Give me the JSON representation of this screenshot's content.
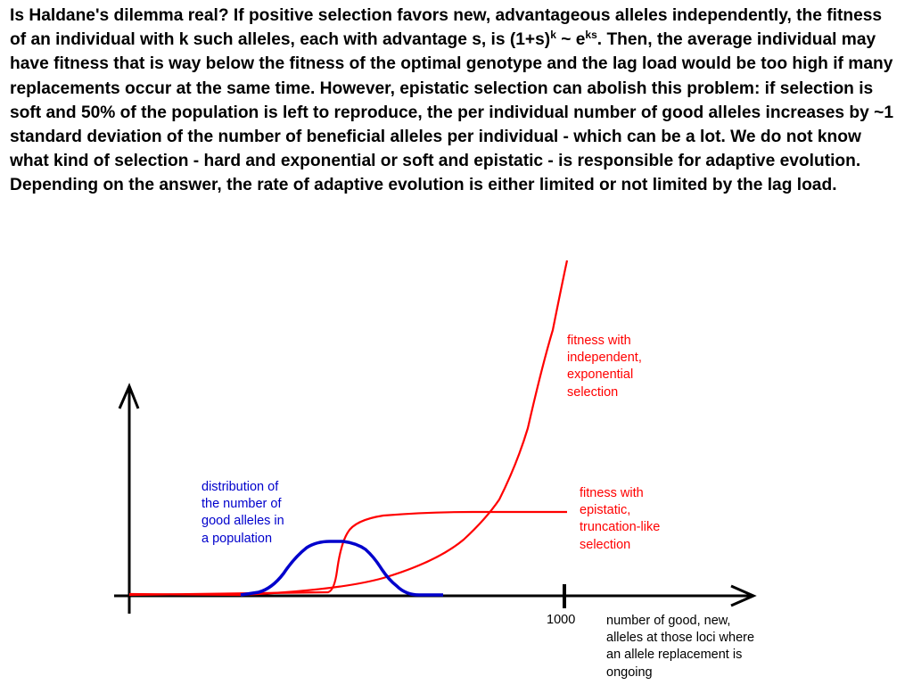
{
  "paragraph": {
    "part1": "Is Haldane's dilemma real? If positive selection favors new, advantageous alleles independently, the fitness of an individual with k such alleles, each with advantage s, is (1+s)",
    "sup1": "k",
    "part2": " ~ e",
    "sup2": "ks",
    "part3": ". Then, the average individual may have fitness that is way below the fitness of the optimal genotype and the lag load would be too high if many replacements occur at the same time. However, epistatic selection can abolish this problem: if selection is soft and 50% of the population is left to reproduce, the per individual number of good alleles increases by ~1 standard deviation of the number of beneficial alleles per individual - which can be a lot. We do not know what kind of selection - hard and exponential or soft and epistatic - is responsible for adaptive evolution.  Depending on the answer, the rate of adaptive evolution is either limited or not limited by the lag load."
  },
  "diagram": {
    "tick_label": "1000",
    "x_axis_label": [
      "number of good, new,",
      "alleles at those loci where",
      "an allele replacement is",
      "ongoing"
    ],
    "label_exponential": [
      "fitness with",
      "independent,",
      "exponential",
      "selection"
    ],
    "label_epistatic": [
      "fitness with",
      "epistatic,",
      "truncation-like",
      "selection"
    ],
    "label_distribution": [
      "distribution of",
      "the number of",
      "good alleles in",
      "a population"
    ],
    "colors": {
      "fitness_curves": "#ff0000",
      "distribution": "#0000cc",
      "axes": "#000000"
    }
  }
}
